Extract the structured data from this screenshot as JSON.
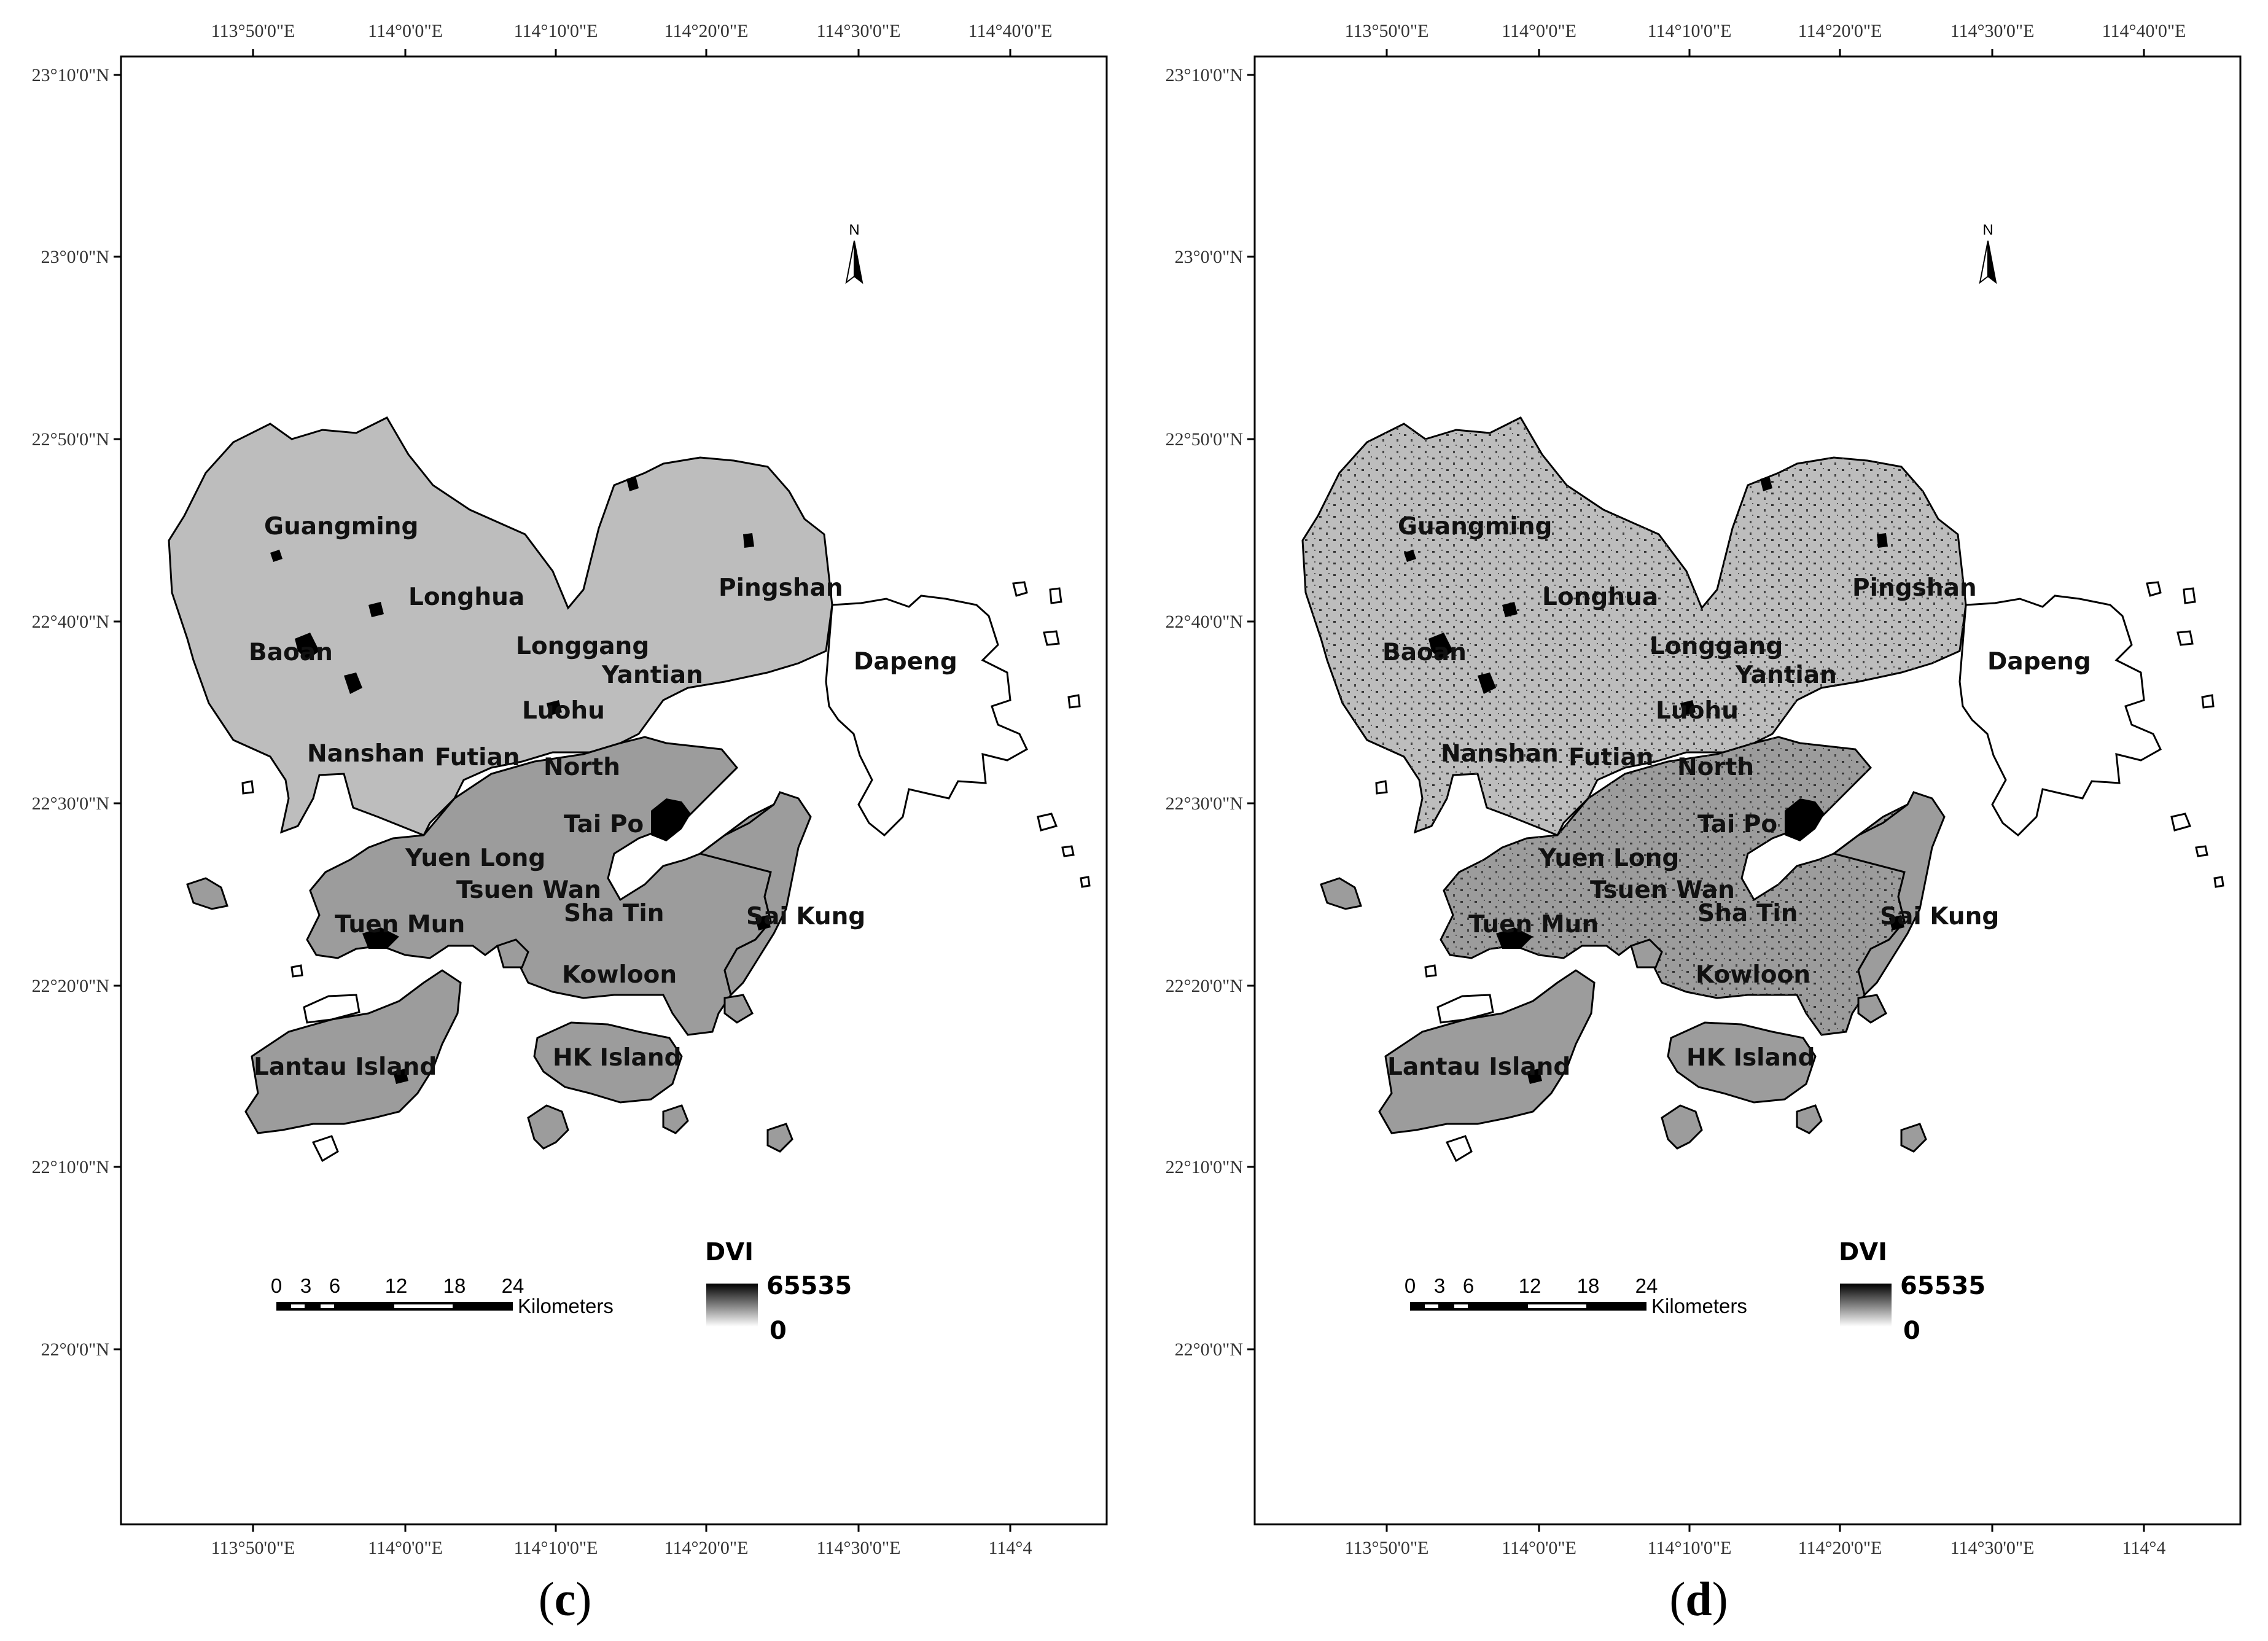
{
  "panels": [
    {
      "caption_open": "(",
      "caption_letter": "c",
      "caption_close": ")",
      "sea_speckle": false
    },
    {
      "caption_open": "(",
      "caption_letter": "d",
      "caption_close": ")",
      "sea_speckle": true
    }
  ],
  "top_labels": [
    "113°50'0\"E",
    "114°0'0\"E",
    "114°10'0\"E",
    "114°20'0\"E",
    "114°30'0\"E",
    "114°40'0\"E"
  ],
  "bottom_labels": [
    "113°50'0\"E",
    "114°0'0\"E",
    "114°10'0\"E",
    "114°20'0\"E",
    "114°30'0\"E",
    "114°4"
  ],
  "left_labels": [
    "23°10'0\"N",
    "23°0'0\"N",
    "22°50'0\"N",
    "22°40'0\"N",
    "22°30'0\"N",
    "22°20'0\"N",
    "22°10'0\"N",
    "22°0'0\"N"
  ],
  "north": "N",
  "places": {
    "guangming": "Guangming",
    "longhua": "Longhua",
    "pingshan": "Pingshan",
    "baoan": "Baoan",
    "longgang": "Longgang",
    "yantian": "Yantian",
    "dapeng": "Dapeng",
    "luohu": "Luohu",
    "nanshan": "Nanshan",
    "futian": "Futian",
    "north": "North",
    "tai_po": "Tai Po",
    "yuen_long": "Yuen Long",
    "tsuen_wan": "Tsuen Wan",
    "sha_tin": "Sha Tin",
    "sai_kung": "Sai Kung",
    "tuen_mun": "Tuen Mun",
    "kowloon": "Kowloon",
    "lantau": "Lantau Island",
    "hk_island": "HK Island"
  },
  "scale": {
    "ticks": [
      "0",
      "3",
      "6",
      "12",
      "18",
      "24"
    ],
    "unit": "Kilometers"
  },
  "legend": {
    "title": "DVI",
    "max": "65535",
    "min": "0"
  },
  "colors": {
    "shenzhen_fill": "#bdbdbd",
    "hongkong_fill": "#9c9c9c",
    "water_body": "#000000",
    "frame": "#000000"
  }
}
